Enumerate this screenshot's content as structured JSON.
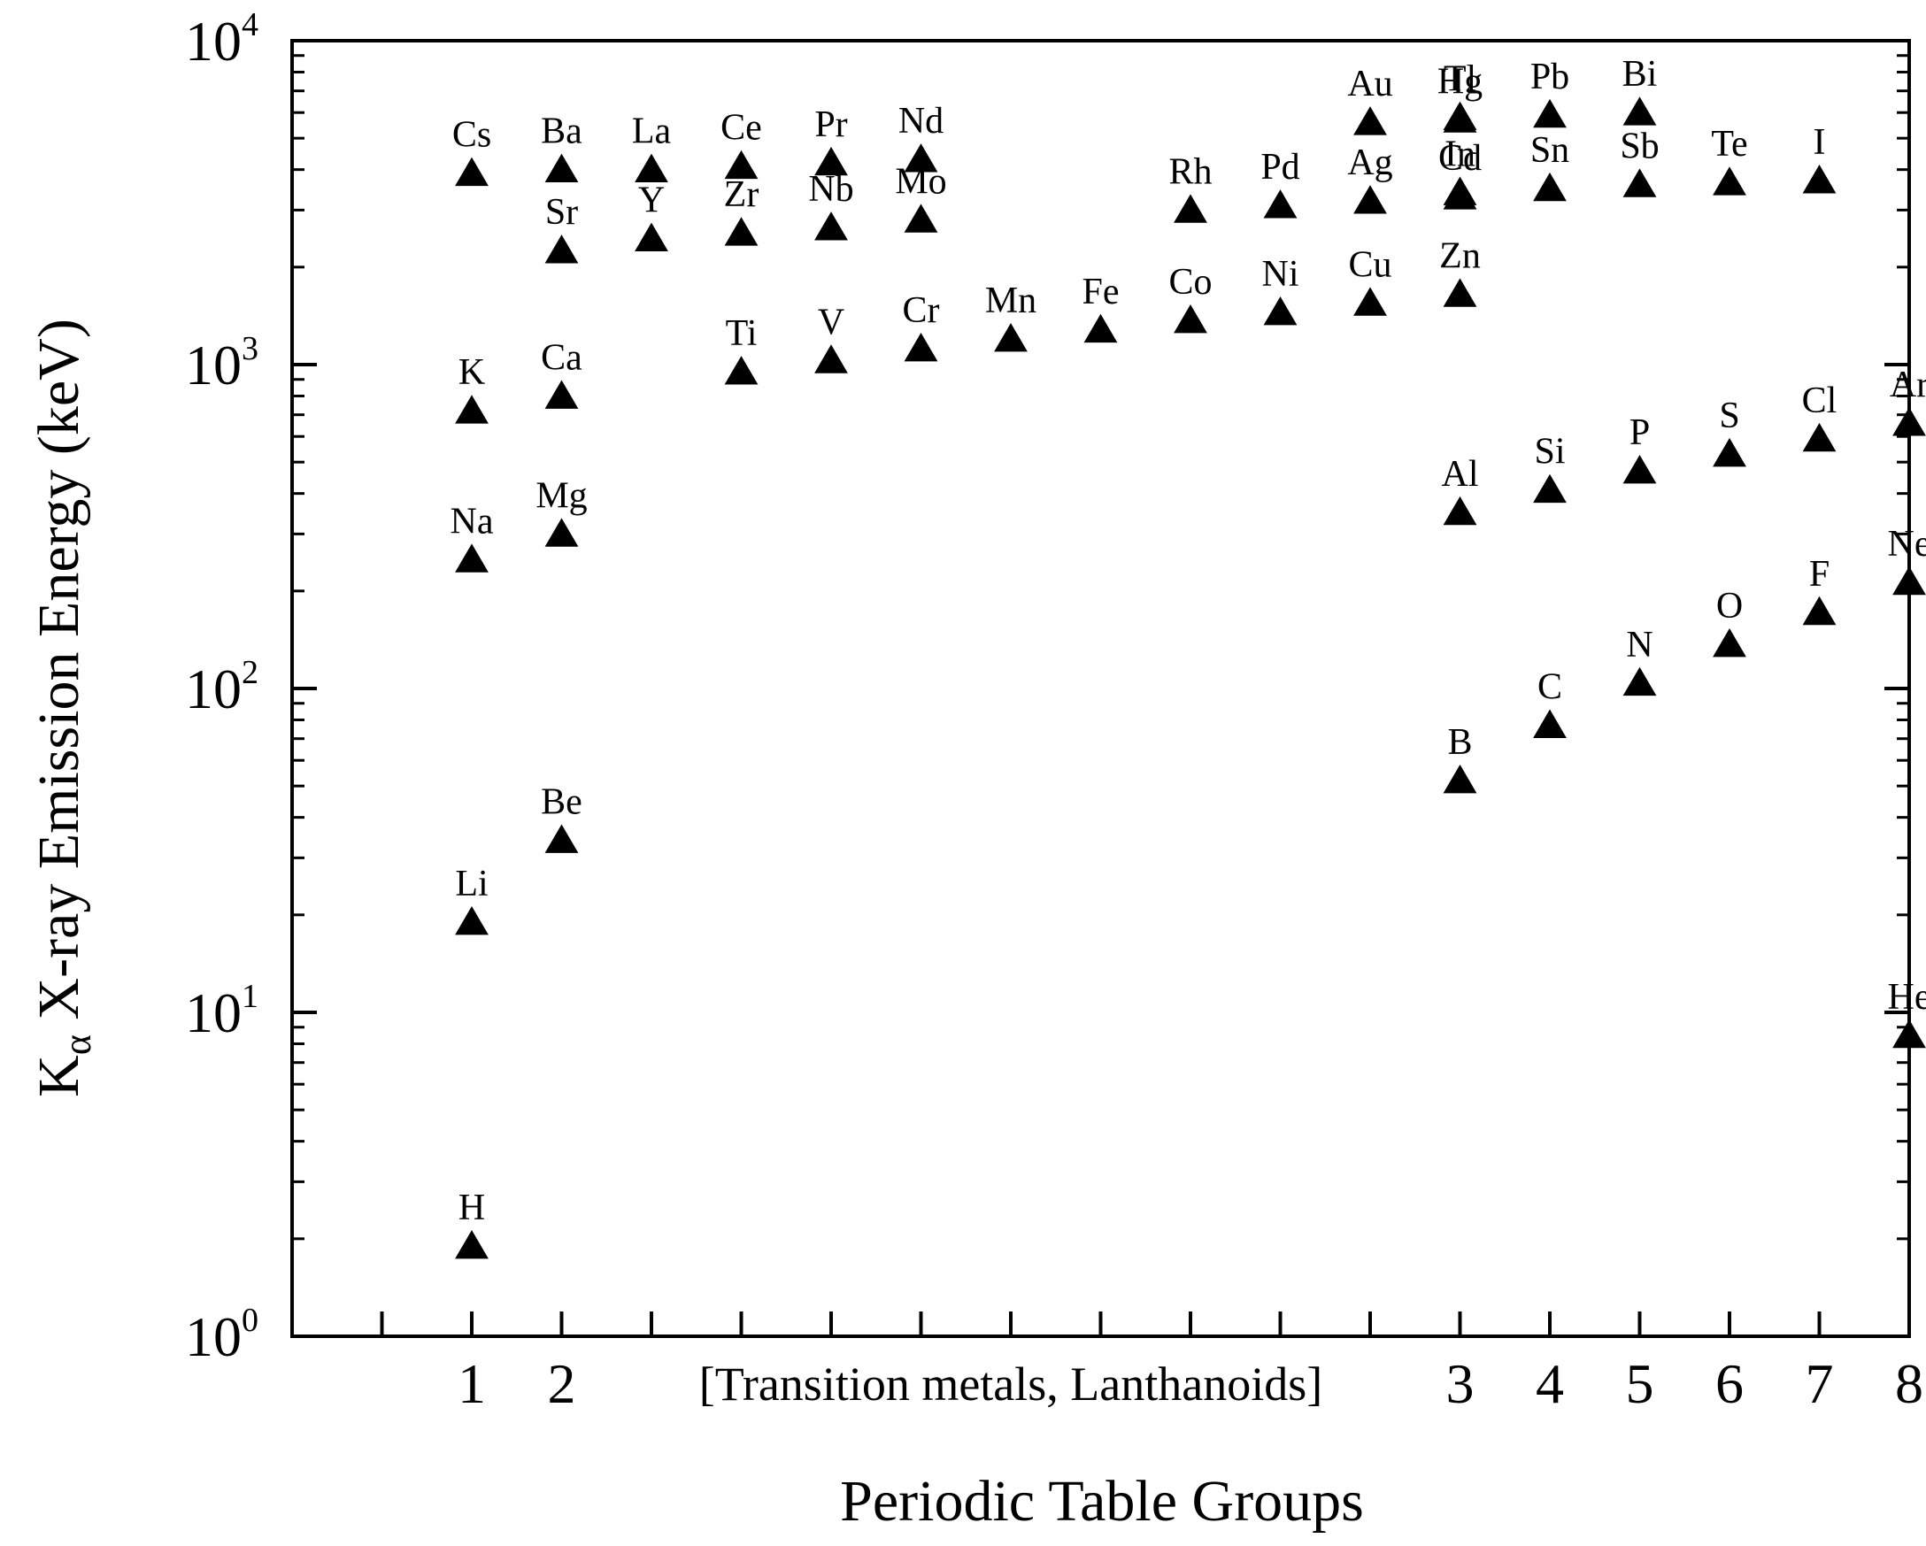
{
  "chart_data": {
    "type": "scatter",
    "title": "",
    "xlabel": "Periodic Table Groups",
    "ylabel": {
      "base": "K",
      "subscript": "α",
      "text": " X-ray Emission Energy (keV)"
    },
    "y_scale": "log",
    "ylim": [
      1,
      10000
    ],
    "y_ticks": [
      {
        "value": 1,
        "base": "10",
        "exp": "0"
      },
      {
        "value": 10,
        "base": "10",
        "exp": "1"
      },
      {
        "value": 100,
        "base": "10",
        "exp": "2"
      },
      {
        "value": 1000,
        "base": "10",
        "exp": "3"
      },
      {
        "value": 10000,
        "base": "10",
        "exp": "4"
      }
    ],
    "x_range": [
      -1,
      17
    ],
    "x_tick_positions": [
      0,
      1,
      2,
      3,
      4,
      5,
      6,
      7,
      8,
      9,
      10,
      11,
      12,
      13,
      14,
      15,
      16
    ],
    "x_group_labels": [
      {
        "x": 1,
        "label": "1"
      },
      {
        "x": 2,
        "label": "2"
      },
      {
        "x": 12,
        "label": "3"
      },
      {
        "x": 13,
        "label": "4"
      },
      {
        "x": 14,
        "label": "5"
      },
      {
        "x": 15,
        "label": "6"
      },
      {
        "x": 16,
        "label": "7"
      },
      {
        "x": 17,
        "label": "8"
      }
    ],
    "x_bracket_label": {
      "x": 7,
      "label": "[Transition metals, Lanthanoids]"
    },
    "marker": "triangle",
    "marker_color": "#000000",
    "points": [
      {
        "label": "H",
        "x": 1,
        "y": 1.9
      },
      {
        "label": "Li",
        "x": 1,
        "y": 19
      },
      {
        "label": "Na",
        "x": 1,
        "y": 250
      },
      {
        "label": "K",
        "x": 1,
        "y": 720
      },
      {
        "label": "Cs",
        "x": 1,
        "y": 3900
      },
      {
        "label": "Be",
        "x": 2,
        "y": 34
      },
      {
        "label": "Mg",
        "x": 2,
        "y": 300
      },
      {
        "label": "Ca",
        "x": 2,
        "y": 800
      },
      {
        "label": "Sr",
        "x": 2,
        "y": 2250
      },
      {
        "label": "Ba",
        "x": 2,
        "y": 4000
      },
      {
        "label": "Y",
        "x": 3,
        "y": 2450
      },
      {
        "label": "La",
        "x": 3,
        "y": 4000
      },
      {
        "label": "Ti",
        "x": 4,
        "y": 950
      },
      {
        "label": "Zr",
        "x": 4,
        "y": 2550
      },
      {
        "label": "Ce",
        "x": 4,
        "y": 4100
      },
      {
        "label": "V",
        "x": 5,
        "y": 1030
      },
      {
        "label": "Nb",
        "x": 5,
        "y": 2650
      },
      {
        "label": "Pr",
        "x": 5,
        "y": 4200
      },
      {
        "label": "Cr",
        "x": 6,
        "y": 1120
      },
      {
        "label": "Mo",
        "x": 6,
        "y": 2800
      },
      {
        "label": "Nd",
        "x": 6,
        "y": 4300
      },
      {
        "label": "Mn",
        "x": 7,
        "y": 1200
      },
      {
        "label": "Fe",
        "x": 8,
        "y": 1280
      },
      {
        "label": "Co",
        "x": 9,
        "y": 1370
      },
      {
        "label": "Rh",
        "x": 9,
        "y": 3000
      },
      {
        "label": "Ni",
        "x": 10,
        "y": 1450
      },
      {
        "label": "Pd",
        "x": 10,
        "y": 3100
      },
      {
        "label": "Cu",
        "x": 11,
        "y": 1550
      },
      {
        "label": "Ag",
        "x": 11,
        "y": 3200
      },
      {
        "label": "Au",
        "x": 11,
        "y": 5600
      },
      {
        "label": "Zn",
        "x": 12,
        "y": 1650
      },
      {
        "label": "Cd",
        "x": 12,
        "y": 3300
      },
      {
        "label": "Hg",
        "x": 12,
        "y": 5700
      },
      {
        "label": "B",
        "x": 12,
        "y": 52
      },
      {
        "label": "Al",
        "x": 12,
        "y": 350
      },
      {
        "label": "In",
        "x": 12,
        "y": 3400
      },
      {
        "label": "Tl",
        "x": 12,
        "y": 5800
      },
      {
        "label": "C",
        "x": 13,
        "y": 77
      },
      {
        "label": "Si",
        "x": 13,
        "y": 410
      },
      {
        "label": "Sn",
        "x": 13,
        "y": 3500
      },
      {
        "label": "Pb",
        "x": 13,
        "y": 5900
      },
      {
        "label": "N",
        "x": 14,
        "y": 104
      },
      {
        "label": "P",
        "x": 14,
        "y": 470
      },
      {
        "label": "Sb",
        "x": 14,
        "y": 3600
      },
      {
        "label": "Bi",
        "x": 14,
        "y": 6000
      },
      {
        "label": "O",
        "x": 15,
        "y": 137
      },
      {
        "label": "S",
        "x": 15,
        "y": 530
      },
      {
        "label": "Te",
        "x": 15,
        "y": 3650
      },
      {
        "label": "F",
        "x": 16,
        "y": 172
      },
      {
        "label": "Cl",
        "x": 16,
        "y": 590
      },
      {
        "label": "I",
        "x": 16,
        "y": 3700
      },
      {
        "label": "He",
        "x": 17,
        "y": 8.5
      },
      {
        "label": "Ne",
        "x": 17,
        "y": 213
      },
      {
        "label": "Ar",
        "x": 17,
        "y": 660
      }
    ]
  }
}
